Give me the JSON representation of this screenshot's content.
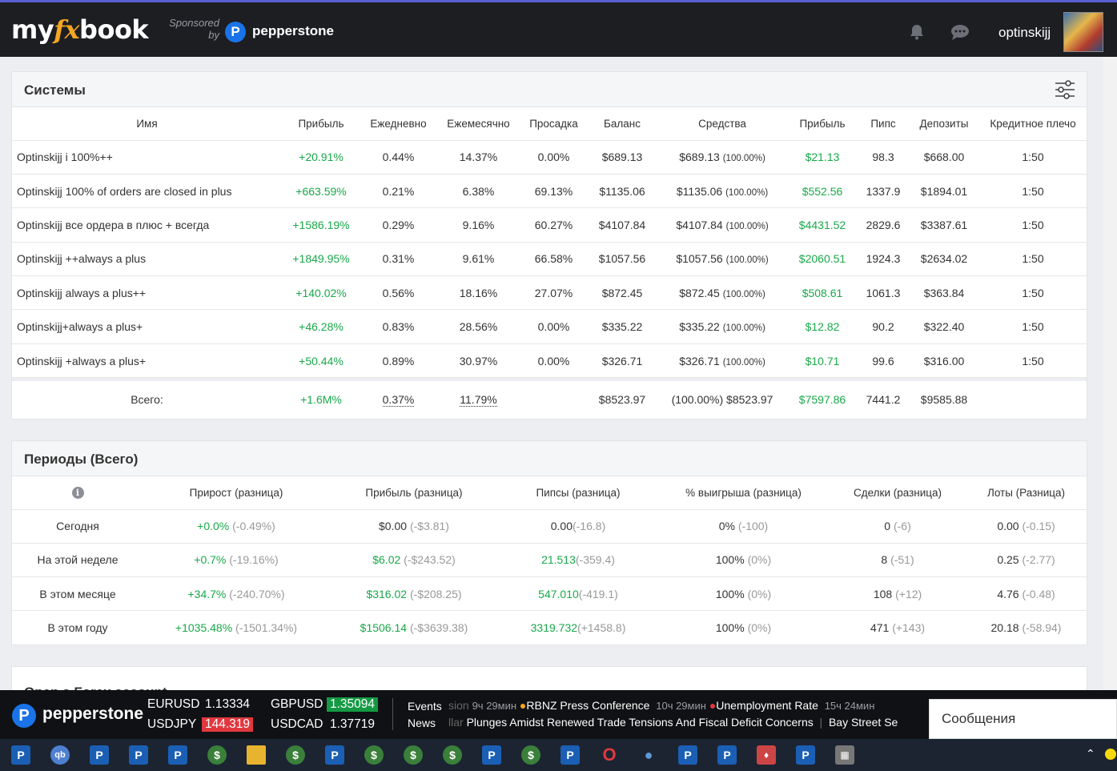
{
  "header": {
    "logo": {
      "my": "my",
      "fx": "fx",
      "book": "book"
    },
    "sponsored_line1": "Sponsored",
    "sponsored_line2": "by",
    "sponsor_name": "pepperstone",
    "username": "optinskijj"
  },
  "systems": {
    "title": "Системы",
    "columns": [
      "Имя",
      "Прибыль",
      "Ежедневно",
      "Ежемесячно",
      "Просадка",
      "Баланс",
      "Средства",
      "Прибыль",
      "Пипс",
      "Депозиты",
      "Кредитное плечо"
    ],
    "rows": [
      {
        "name": "Optinskijj i 100%++",
        "gain": "+20.91%",
        "daily": "0.44%",
        "monthly": "14.37%",
        "drawdown": "0.00%",
        "balance": "$689.13",
        "equity": "$689.13",
        "equity_pct": "(100.00%)",
        "profit": "$21.13",
        "pips": "98.3",
        "deposits": "$668.00",
        "leverage": "1:50"
      },
      {
        "name": "Optinskijj 100% of orders are closed in plus",
        "gain": "+663.59%",
        "daily": "0.21%",
        "monthly": "6.38%",
        "drawdown": "69.13%",
        "balance": "$1135.06",
        "equity": "$1135.06",
        "equity_pct": "(100.00%)",
        "profit": "$552.56",
        "pips": "1337.9",
        "deposits": "$1894.01",
        "leverage": "1:50"
      },
      {
        "name": "Optinskijj все ордера в плюс + всегда",
        "gain": "+1586.19%",
        "daily": "0.29%",
        "monthly": "9.16%",
        "drawdown": "60.27%",
        "balance": "$4107.84",
        "equity": "$4107.84",
        "equity_pct": "(100.00%)",
        "profit": "$4431.52",
        "pips": "2829.6",
        "deposits": "$3387.61",
        "leverage": "1:50"
      },
      {
        "name": "Optinskijj ++always a plus",
        "gain": "+1849.95%",
        "daily": "0.31%",
        "monthly": "9.61%",
        "drawdown": "66.58%",
        "balance": "$1057.56",
        "equity": "$1057.56",
        "equity_pct": "(100.00%)",
        "profit": "$2060.51",
        "pips": "1924.3",
        "deposits": "$2634.02",
        "leverage": "1:50"
      },
      {
        "name": "Optinskijj always a plus++",
        "gain": "+140.02%",
        "daily": "0.56%",
        "monthly": "18.16%",
        "drawdown": "27.07%",
        "balance": "$872.45",
        "equity": "$872.45",
        "equity_pct": "(100.00%)",
        "profit": "$508.61",
        "pips": "1061.3",
        "deposits": "$363.84",
        "leverage": "1:50"
      },
      {
        "name": "Optinskijj+always a plus+",
        "gain": "+46.28%",
        "daily": "0.83%",
        "monthly": "28.56%",
        "drawdown": "0.00%",
        "balance": "$335.22",
        "equity": "$335.22",
        "equity_pct": "(100.00%)",
        "profit": "$12.82",
        "pips": "90.2",
        "deposits": "$322.40",
        "leverage": "1:50"
      },
      {
        "name": "Optinskijj +always a plus+",
        "gain": "+50.44%",
        "daily": "0.89%",
        "monthly": "30.97%",
        "drawdown": "0.00%",
        "balance": "$326.71",
        "equity": "$326.71",
        "equity_pct": "(100.00%)",
        "profit": "$10.71",
        "pips": "99.6",
        "deposits": "$316.00",
        "leverage": "1:50"
      }
    ],
    "total": {
      "label": "Всего:",
      "gain": "+1.6M%",
      "daily": "0.37%",
      "monthly": "11.79%",
      "balance": "$8523.97",
      "equity": "(100.00%) $8523.97",
      "profit": "$7597.86",
      "pips": "7441.2",
      "deposits": "$9585.88"
    }
  },
  "periods": {
    "title": "Периоды (Всего)",
    "columns": [
      "Прирост (разница)",
      "Прибыль (разница)",
      "Пипсы (разница)",
      "% выигрыша (разница)",
      "Сделки (разница)",
      "Лоты (Разница)"
    ],
    "rows": [
      {
        "label": "Сегодня",
        "growth": "+0.0%",
        "growth_diff": "(-0.49%)",
        "profit": "$0.00",
        "profit_diff": "(-$3.81)",
        "pips": "0.00",
        "pips_diff": "(-16.8)",
        "win": "0%",
        "win_diff": "(-100)",
        "trades": "0",
        "trades_diff": "(-6)",
        "lots": "0.00",
        "lots_diff": "(-0.15)"
      },
      {
        "label": "На этой неделе",
        "growth": "+0.7%",
        "growth_diff": "(-19.16%)",
        "profit": "$6.02",
        "profit_diff": "(-$243.52)",
        "pips": "21.513",
        "pips_diff": "(-359.4)",
        "win": "100%",
        "win_diff": "(0%)",
        "trades": "8",
        "trades_diff": "(-51)",
        "lots": "0.25",
        "lots_diff": "(-2.77)"
      },
      {
        "label": "В этом месяце",
        "growth": "+34.7%",
        "growth_diff": "(-240.70%)",
        "profit": "$316.02",
        "profit_diff": "(-$208.25)",
        "pips": "547.010",
        "pips_diff": "(-419.1)",
        "win": "100%",
        "win_diff": "(0%)",
        "trades": "108",
        "trades_diff": "(+12)",
        "lots": "4.76",
        "lots_diff": "(-0.48)"
      },
      {
        "label": "В этом году",
        "growth": "+1035.48%",
        "growth_diff": "(-1501.34%)",
        "profit": "$1506.14",
        "profit_diff": "(-$3639.38)",
        "pips": "3319.732",
        "pips_diff": "(+1458.8)",
        "win": "100%",
        "win_diff": "(0%)",
        "trades": "471",
        "trades_diff": "(+143)",
        "lots": "20.18",
        "lots_diff": "(-58.94)"
      }
    ]
  },
  "next_section_title": "Open a Forex account",
  "ticker": {
    "brand": "pepperstone",
    "pairs": [
      {
        "pair": "EURUSD",
        "value": "1.13334",
        "trend": "none"
      },
      {
        "pair": "GBPUSD",
        "value": "1.35094",
        "trend": "up"
      },
      {
        "pair": "USDJPY",
        "value": "144.319",
        "trend": "down"
      },
      {
        "pair": "USDCAD",
        "value": "1.37719",
        "trend": "none"
      }
    ],
    "events_label": "Events",
    "news_label": "News",
    "events": [
      {
        "fade": "sion",
        "time": "9ч 29мин",
        "title": "RBNZ Press Conference",
        "color": "orange"
      },
      {
        "time": "10ч 29мин",
        "title": "Unemployment Rate",
        "color": "red"
      },
      {
        "time": "15ч 24мин"
      }
    ],
    "news": [
      {
        "fade": "llar",
        "title": "Plunges Amidst Renewed Trade Tensions And Fiscal Deficit Concerns"
      },
      {
        "title": "Bay Street Se"
      }
    ]
  },
  "messages_label": "Сообщения",
  "colors": {
    "positive": "#19a84a",
    "accent_brand": "#1a73e8",
    "up": "#139a43",
    "down": "#e0383e"
  }
}
